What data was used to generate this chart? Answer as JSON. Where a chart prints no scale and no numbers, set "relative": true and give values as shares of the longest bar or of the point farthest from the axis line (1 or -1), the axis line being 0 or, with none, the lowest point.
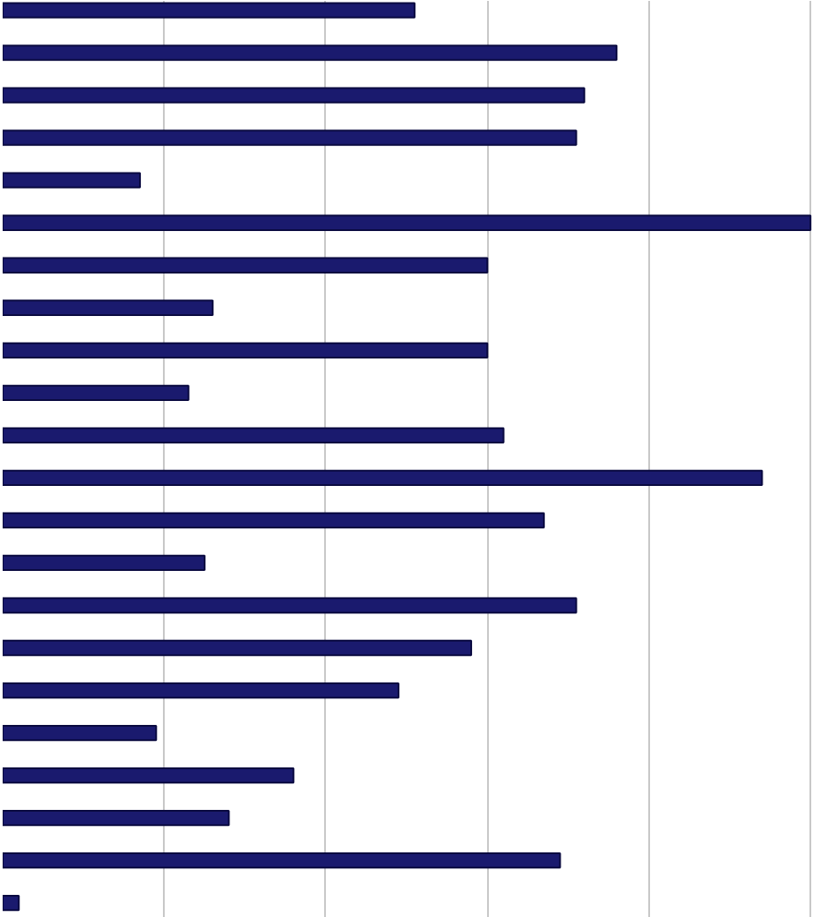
{
  "chart_data": {
    "type": "bar",
    "orientation": "horizontal",
    "relative": true,
    "grid": "x",
    "color": "#1a1a6e",
    "categories": [
      null,
      null,
      null,
      null,
      null,
      null,
      null,
      null,
      null,
      null,
      null,
      null,
      null,
      null,
      null,
      null,
      null,
      null,
      null,
      null,
      null,
      null
    ],
    "values": [
      0.51,
      0.76,
      0.72,
      0.71,
      0.17,
      1,
      0.6,
      0.26,
      0.6,
      0.23,
      0.62,
      0.94,
      0.67,
      0.25,
      0.71,
      0.58,
      0.49,
      0.19,
      0.36,
      0.28,
      0.69,
      0.02
    ]
  }
}
